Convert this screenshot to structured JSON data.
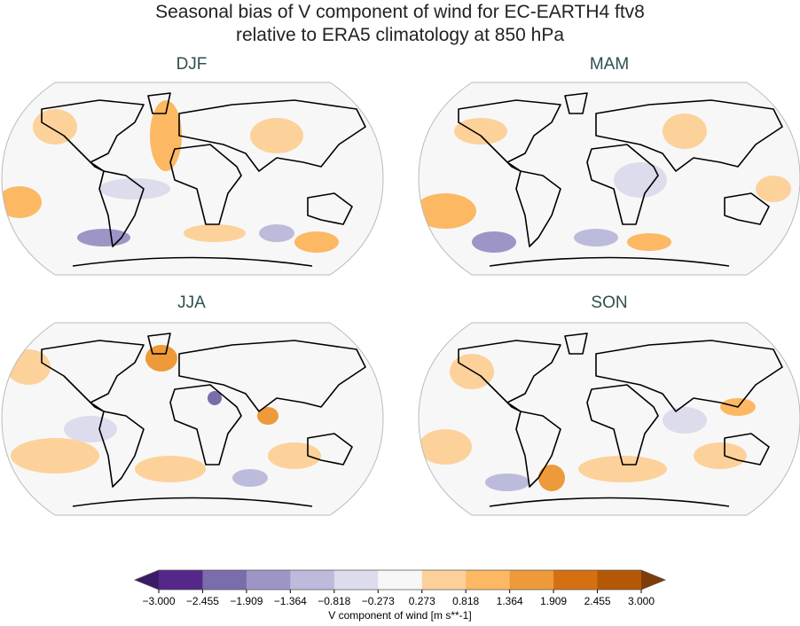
{
  "figure": {
    "title": [
      "Seasonal bias of V component of wind for EC-EARTH4 ftv8",
      "relative to ERA5 climatology at 850 hPa"
    ],
    "panels": [
      {
        "title": "DJF"
      },
      {
        "title": "MAM"
      },
      {
        "title": "JJA"
      },
      {
        "title": "SON"
      }
    ],
    "colorbar": {
      "label": "V component of wind [m s**-1]",
      "lim": [
        -3,
        3
      ],
      "ticks": [
        {
          "value": -3,
          "label": "−3.000"
        },
        {
          "value": -2.455,
          "label": "−2.455"
        },
        {
          "value": -1.909,
          "label": "−1.909"
        },
        {
          "value": -1.364,
          "label": "−1.364"
        },
        {
          "value": -0.818,
          "label": "−0.818"
        },
        {
          "value": -0.273,
          "label": "−0.273"
        },
        {
          "value": 0.273,
          "label": "0.273"
        },
        {
          "value": 0.818,
          "label": "0.818"
        },
        {
          "value": 1.364,
          "label": "1.364"
        },
        {
          "value": 1.909,
          "label": "1.909"
        },
        {
          "value": 2.455,
          "label": "2.455"
        },
        {
          "value": 3,
          "label": "3.000"
        }
      ],
      "colors": [
        "#542788",
        "#7b6cab",
        "#9d95c5",
        "#bdbbdb",
        "#dcdcec",
        "#f7f7f7",
        "#fdd19a",
        "#fdb863",
        "#ee9a3a",
        "#d47012",
        "#b35806"
      ],
      "under_color": "#3b1a66",
      "over_color": "#7f3b08"
    }
  }
}
